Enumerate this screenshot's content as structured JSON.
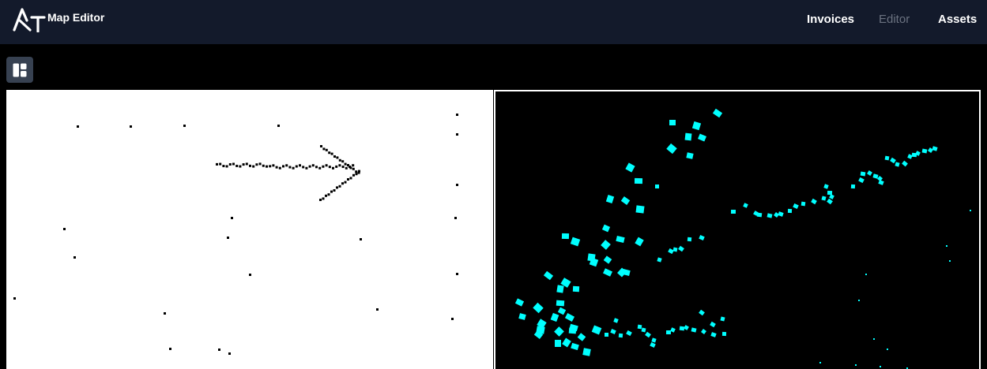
{
  "app": {
    "logo_text": "RT",
    "title": "Map Editor"
  },
  "nav": {
    "items": [
      {
        "label": "Invoices",
        "active": false
      },
      {
        "label": "Editor",
        "active": true
      },
      {
        "label": "Assets",
        "active": false
      }
    ]
  },
  "toolbar": {
    "layout_icon": "layout-panels-icon"
  },
  "colors": {
    "topbar_bg": "#131a2b",
    "editor_bg": "#000000",
    "input_canvas_bg": "#ffffff",
    "input_stroke_color": "#000000",
    "output_canvas_bg": "#000000",
    "output_mark_color": "#00ffff",
    "active_nav_color": "#6b7280"
  }
}
